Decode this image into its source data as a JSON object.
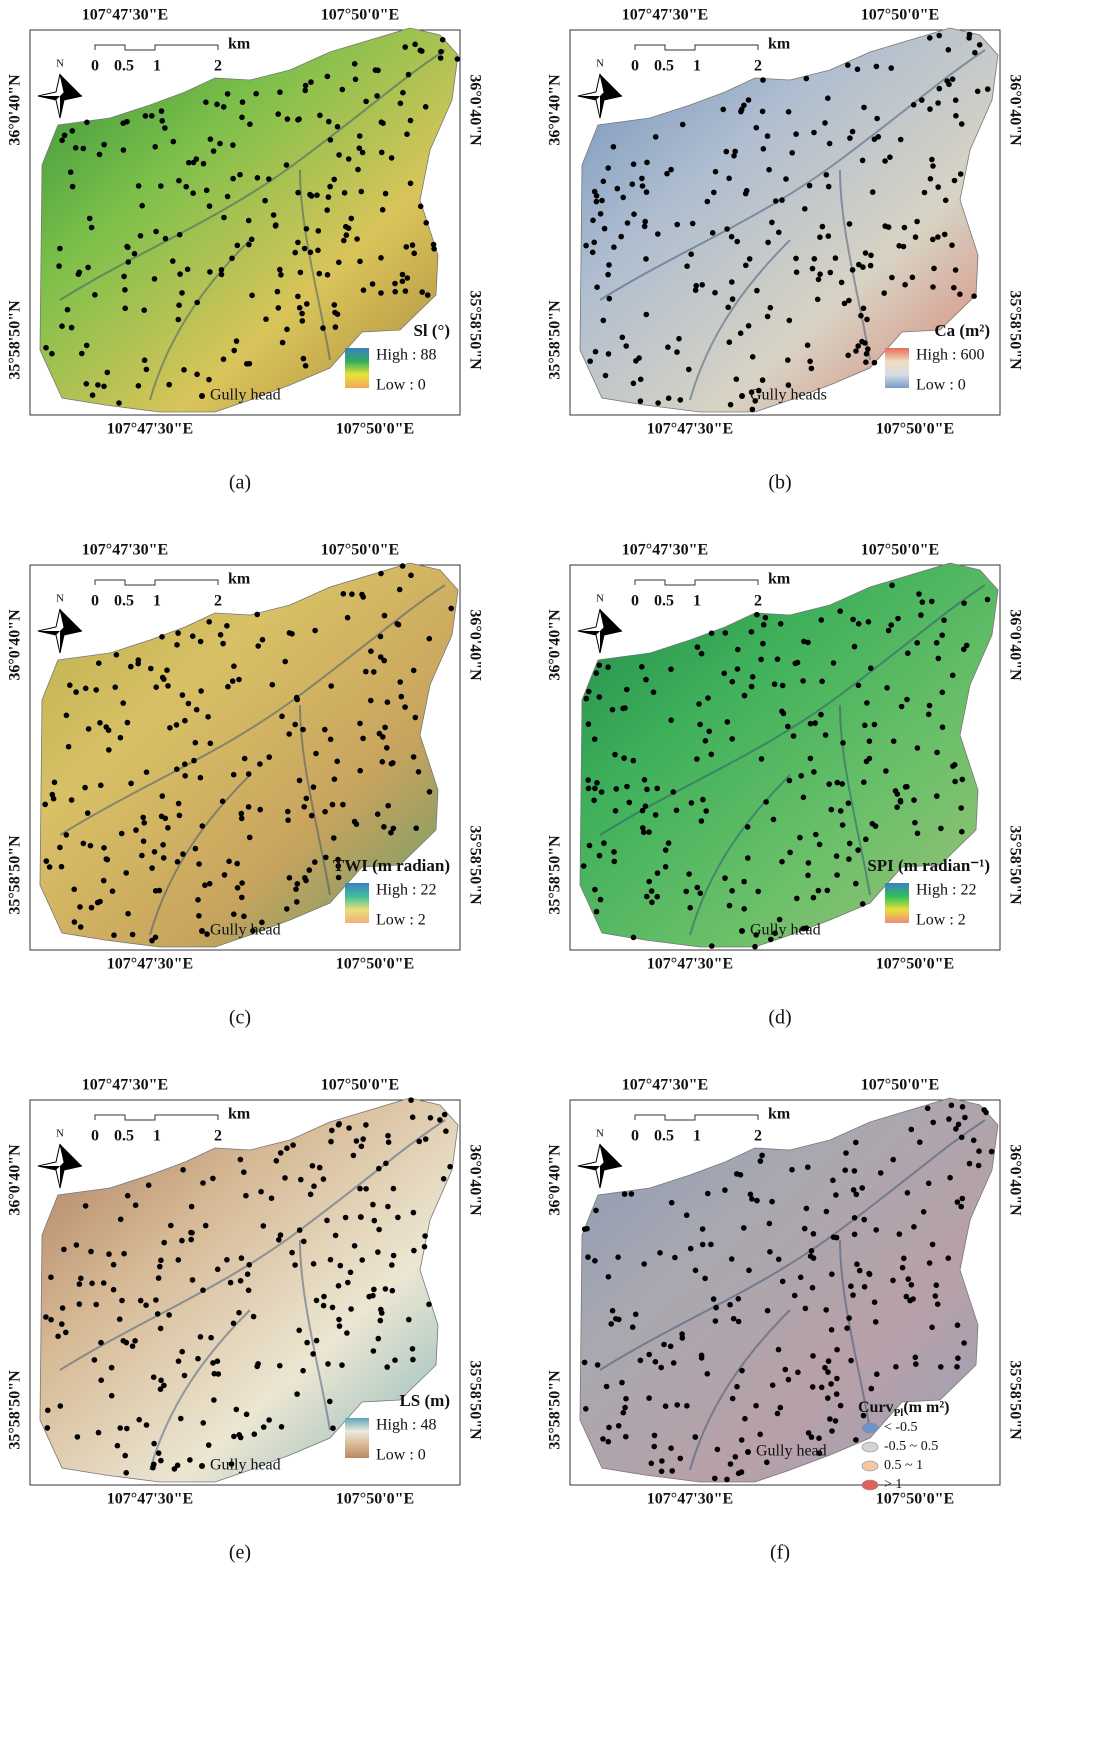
{
  "panels": [
    {
      "top_labels": [
        "107°47'30\"E",
        "107°50'0\"E"
      ],
      "bottom_labels": [
        "107°47'30\"E",
        "107°50'0\"E"
      ],
      "left_labels": [
        "36°0'40\"N",
        "35°58'50\"N"
      ],
      "right_labels": [
        "36°0'40\"N",
        "35°58'50\"N"
      ],
      "scale_labels": [
        "0",
        "0.5",
        "1",
        "2"
      ],
      "scale_unit": "km",
      "north": "N",
      "legend": {
        "title": "Sl (°)",
        "high": "High : 88",
        "low": "Low : 0",
        "ramp": [
          "#3b7fc4",
          "#2fae5a",
          "#e8e23a",
          "#f0a85a"
        ]
      },
      "map_colors": [
        "#2f8f3a",
        "#7cc04a",
        "#d9c45a",
        "#a9843a"
      ],
      "gully": "Gully head",
      "caption": "(a)"
    },
    {
      "top_labels": [
        "107°47'30\"E",
        "107°50'0\"E"
      ],
      "bottom_labels": [
        "107°47'30\"E",
        "107°50'0\"E"
      ],
      "left_labels": [
        "36°0'40\"N",
        "35°58'50\"N"
      ],
      "right_labels": [
        "36°0'40\"N",
        "35°58'50\"N"
      ],
      "scale_labels": [
        "0",
        "0.5",
        "1",
        "2"
      ],
      "scale_unit": "km",
      "north": "N",
      "legend": {
        "title": "Ca (m²)",
        "high": "High : 600",
        "low": "Low : 0",
        "ramp": [
          "#e86a5a",
          "#f2dcc0",
          "#d6dde6",
          "#7a9cc8"
        ]
      },
      "map_colors": [
        "#6f8fb8",
        "#aebdd0",
        "#d8d3c4",
        "#d97a6a"
      ],
      "gully": "Gully heads",
      "caption": "(b)"
    },
    {
      "top_labels": [
        "107°47'30\"E",
        "107°50'0\"E"
      ],
      "bottom_labels": [
        "107°47'30\"E",
        "107°50'0\"E"
      ],
      "left_labels": [
        "36°0'40\"N",
        "35°58'50\"N"
      ],
      "right_labels": [
        "36°0'40\"N",
        "35°58'50\"N"
      ],
      "scale_labels": [
        "0",
        "0.5",
        "1",
        "2"
      ],
      "scale_unit": "km",
      "north": "N",
      "legend": {
        "title": "TWI (m radian)",
        "high": "High : 22",
        "low": "Low : 2",
        "ramp": [
          "#3b7fc4",
          "#3fbf9a",
          "#e8e07a",
          "#f0b07a"
        ]
      },
      "map_colors": [
        "#b9b04a",
        "#d8c066",
        "#c9a45e",
        "#5f9a6a"
      ],
      "gully": "Gully head",
      "caption": "(c)"
    },
    {
      "top_labels": [
        "107°47'30\"E",
        "107°50'0\"E"
      ],
      "bottom_labels": [
        "107°47'30\"E",
        "107°50'0\"E"
      ],
      "left_labels": [
        "36°0'40\"N",
        "35°58'50\"N"
      ],
      "right_labels": [
        "36°0'40\"N",
        "35°58'50\"N"
      ],
      "scale_labels": [
        "0",
        "0.5",
        "1",
        "2"
      ],
      "scale_unit": "km",
      "north": "N",
      "legend": {
        "title": "SPI (m radian⁻¹)",
        "high": "High : 22",
        "low": "Low : 2",
        "ramp": [
          "#3b7fc4",
          "#2fbf5a",
          "#e8e03a",
          "#f08a7a"
        ]
      },
      "map_colors": [
        "#1f8a4a",
        "#3fb05a",
        "#6cc06a",
        "#a0c07a"
      ],
      "gully": "Gully head",
      "caption": "(d)"
    },
    {
      "top_labels": [
        "107°47'30\"E",
        "107°50'0\"E"
      ],
      "bottom_labels": [
        "107°47'30\"E",
        "107°50'0\"E"
      ],
      "left_labels": [
        "36°0'40\"N",
        "35°58'50\"N"
      ],
      "right_labels": [
        "36°0'40\"N",
        "35°58'50\"N"
      ],
      "scale_labels": [
        "0",
        "0.5",
        "1",
        "2"
      ],
      "scale_unit": "km",
      "north": "N",
      "legend": {
        "title": "LS (m)",
        "high": "High : 48",
        "low": "Low : 0",
        "ramp": [
          "#5aa6b8",
          "#eeeadb",
          "#d9b894",
          "#b98a62"
        ]
      },
      "map_colors": [
        "#a8795a",
        "#d6b894",
        "#ece6d2",
        "#7ab2b8"
      ],
      "gully": "Gully head",
      "caption": "(e)"
    },
    {
      "top_labels": [
        "107°47'30\"E",
        "107°50'0\"E"
      ],
      "bottom_labels": [
        "107°47'30\"E",
        "107°50'0\"E"
      ],
      "left_labels": [
        "36°0'40\"N",
        "35°58'50\"N"
      ],
      "right_labels": [
        "36°0'40\"N",
        "35°58'50\"N"
      ],
      "scale_labels": [
        "0",
        "0.5",
        "1",
        "2"
      ],
      "scale_unit": "km",
      "north": "N",
      "legend": {
        "title": "Curv",
        "title_sub": "Pl",
        "title_unit": "(m m²)",
        "items": [
          {
            "label": "< -0.5",
            "color": "#6f93c8"
          },
          {
            "label": "-0.5 ~ 0.5",
            "color": "#d4d4d0"
          },
          {
            "label": "0.5 ~ 1",
            "color": "#f4c8a0"
          },
          {
            "label": "> 1",
            "color": "#e06060"
          }
        ]
      },
      "map_colors": [
        "#8a98b8",
        "#a8a8b0",
        "#b8a0a8",
        "#9aa0b8"
      ],
      "gully": "Gully head",
      "caption": "(f)"
    }
  ]
}
